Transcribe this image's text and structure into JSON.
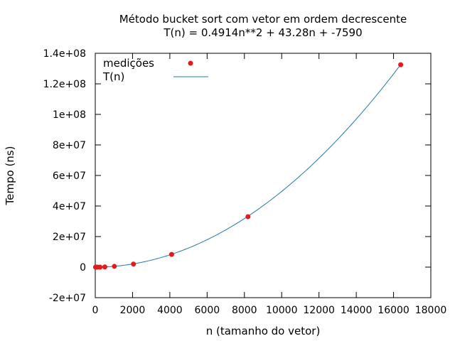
{
  "chart_data": {
    "type": "scatter",
    "title": "Método bucket sort com vetor em ordem decrescente",
    "subtitle": "T(n) = 0.4914n**2 + 43.28n + -7590",
    "xlabel": "n (tamanho do vetor)",
    "ylabel": "Tempo (ns)",
    "xlim": [
      0,
      18000
    ],
    "ylim": [
      -20000000,
      140000000
    ],
    "x_ticks": [
      0,
      2000,
      4000,
      6000,
      8000,
      10000,
      12000,
      14000,
      16000,
      18000
    ],
    "x_tick_labels": [
      "0",
      "2000",
      "4000",
      "6000",
      "8000",
      "10000",
      "12000",
      "14000",
      "16000",
      "18000"
    ],
    "y_ticks": [
      -20000000,
      0,
      20000000,
      40000000,
      60000000,
      80000000,
      100000000,
      120000000,
      140000000
    ],
    "y_tick_labels": [
      "-2e+07",
      "0",
      "2e+07",
      "4e+07",
      "6e+07",
      "8e+07",
      "1e+08",
      "1.2e+08",
      "1.4e+08"
    ],
    "grid": false,
    "legend_position": "top-left",
    "series": [
      {
        "name": "medições",
        "kind": "points",
        "color": "#e41a1c",
        "x": [
          16,
          32,
          64,
          128,
          256,
          512,
          1024,
          2048,
          4096,
          8192,
          16384
        ],
        "y": [
          0,
          0,
          0,
          0,
          0,
          100000,
          500000,
          2000000,
          8300000,
          33000000,
          132500000
        ]
      },
      {
        "name": "T(n)",
        "kind": "line",
        "color": "#1f78b4",
        "coefficients": {
          "a": 0.4914,
          "b": 43.28,
          "c": -7590
        },
        "x_range": [
          0,
          16384
        ]
      }
    ]
  }
}
